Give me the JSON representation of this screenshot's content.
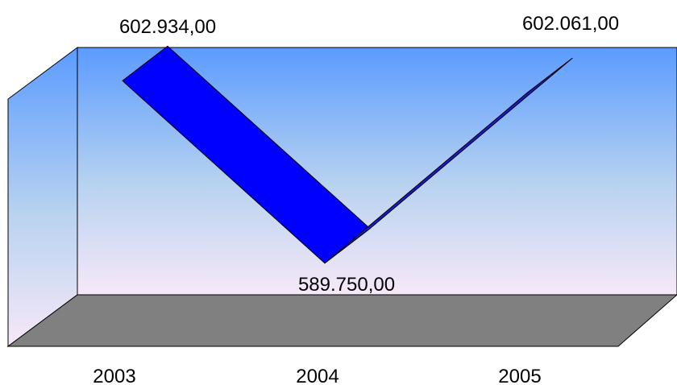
{
  "chart_data": {
    "type": "line",
    "style": "3d-ribbon",
    "categories": [
      "2003",
      "2004",
      "2005"
    ],
    "series": [
      {
        "values": [
          602934,
          589750,
          602061
        ]
      }
    ],
    "data_labels": [
      "602.934,00",
      "589.750,00",
      "602.061,00"
    ],
    "ylim": [
      587000,
      604000
    ],
    "grid": false,
    "legend": "none",
    "colors": {
      "ribbon_top": "#0000ff",
      "ribbon_side": "#1a1acc",
      "wall_top": "#5b9bff",
      "wall_mid": "#b7d2f0",
      "wall_bottom": "#f7e8f8",
      "floor": "#808080",
      "outline": "#000000"
    }
  }
}
